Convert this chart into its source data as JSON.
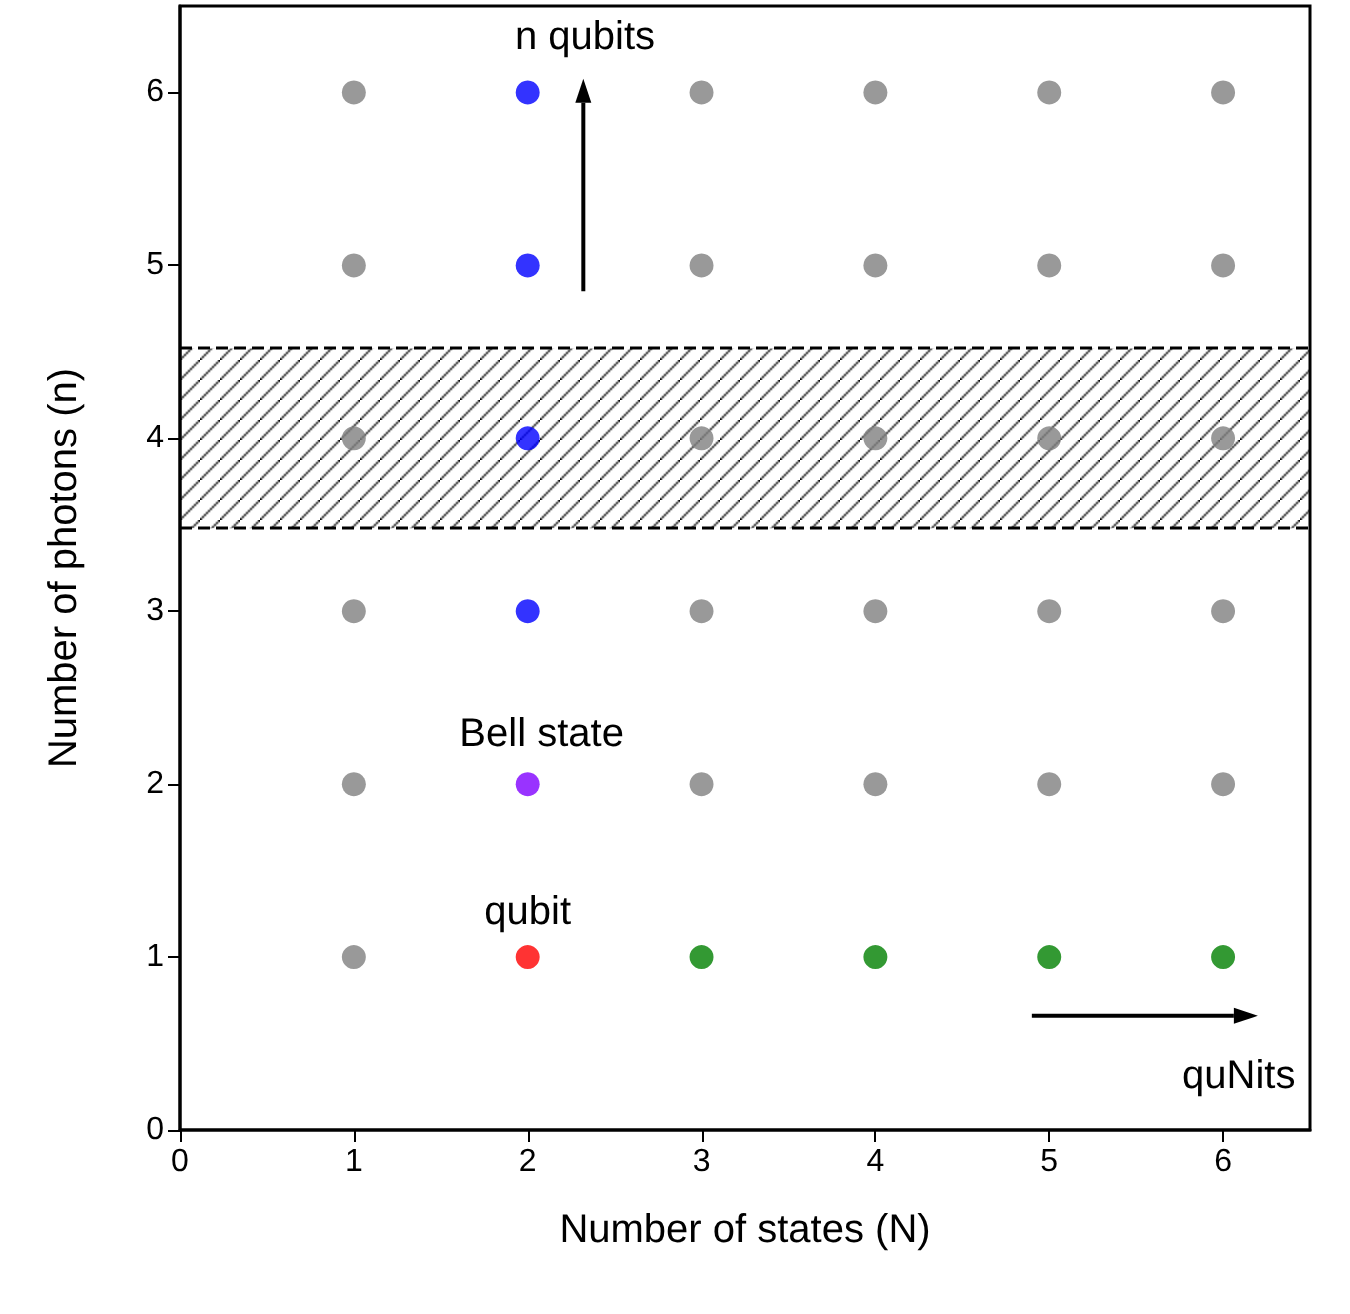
{
  "chart_data": {
    "type": "scatter",
    "xlabel": "Number of states (N)",
    "ylabel": "Number of photons (n)",
    "xlim": [
      0,
      6.5
    ],
    "ylim": [
      0,
      6.5
    ],
    "xticks": [
      0,
      1,
      2,
      3,
      4,
      5,
      6
    ],
    "yticks": [
      0,
      1,
      2,
      3,
      4,
      5,
      6
    ],
    "grid": false,
    "marker": "circle",
    "series": [
      {
        "color": "#808080",
        "x": [
          1,
          1,
          1,
          1,
          1,
          1,
          3,
          3,
          3,
          3,
          3,
          4,
          4,
          4,
          4,
          4,
          5,
          5,
          5,
          5,
          5,
          6,
          6,
          6,
          6,
          6
        ],
        "values": [
          1,
          2,
          3,
          4,
          5,
          6,
          2,
          3,
          4,
          5,
          6,
          2,
          3,
          4,
          5,
          6,
          2,
          3,
          4,
          5,
          6,
          2,
          3,
          4,
          5,
          6
        ]
      },
      {
        "color": "#0000ff",
        "x": [
          2,
          2,
          2,
          2
        ],
        "values": [
          3,
          4,
          5,
          6
        ]
      },
      {
        "color": "#8000ff",
        "x": [
          2
        ],
        "values": [
          2
        ]
      },
      {
        "color": "#ff0000",
        "x": [
          2
        ],
        "values": [
          1
        ]
      },
      {
        "color": "#008000",
        "x": [
          3,
          4,
          5,
          6
        ],
        "values": [
          1,
          1,
          1,
          1
        ]
      }
    ],
    "bands": [
      {
        "axis": "y",
        "from": 3.48,
        "to": 4.52,
        "color": "#000000"
      }
    ],
    "ref_lines": [
      {
        "axis": "y",
        "value": 3.48,
        "color": "#000000",
        "line_style": "dashed"
      },
      {
        "axis": "y",
        "value": 4.52,
        "color": "#000000",
        "line_style": "dashed"
      }
    ],
    "annotations": [
      "n qubits",
      "Bell state",
      "qubit",
      "quNits"
    ]
  }
}
